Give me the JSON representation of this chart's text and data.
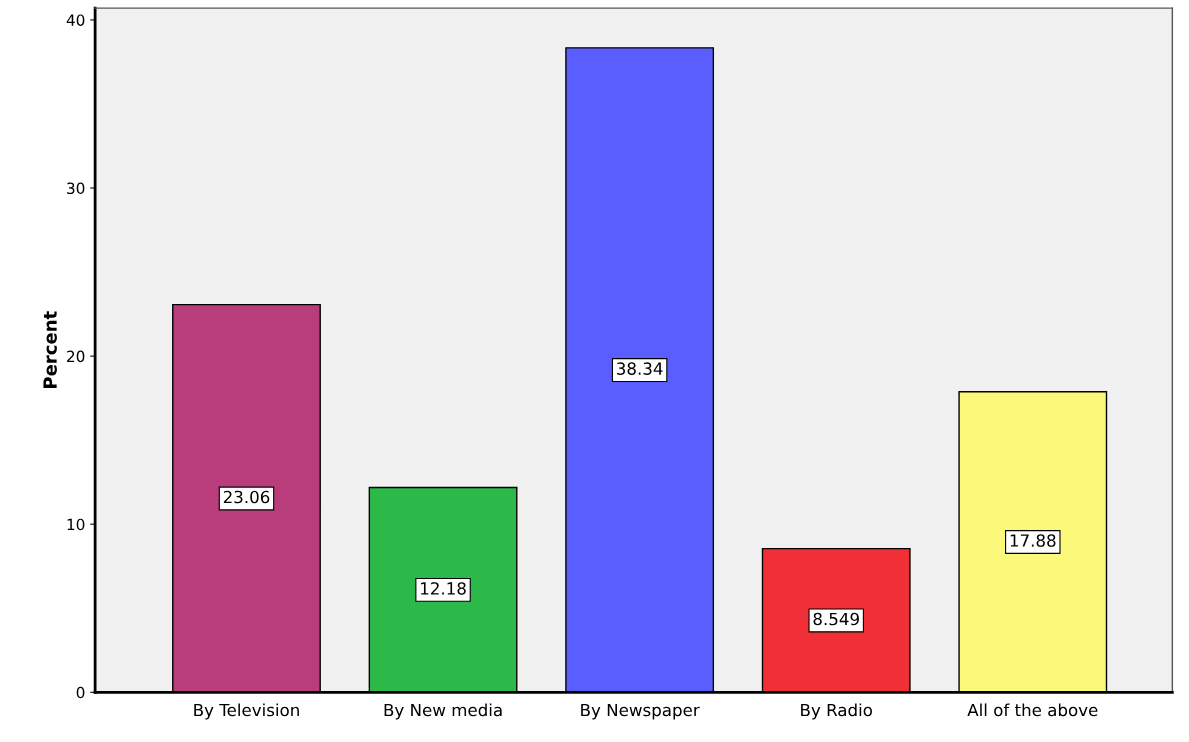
{
  "chart_data": {
    "type": "bar",
    "ylabel": "Percent",
    "categories": [
      "By Television",
      "By New media",
      "By Newspaper",
      "By Radio",
      "All of the above"
    ],
    "values": [
      23.06,
      12.18,
      38.34,
      8.549,
      17.88
    ],
    "colors": [
      "#b83d7a",
      "#2db84a",
      "#5a5eff",
      "#f03036",
      "#fbf87a"
    ],
    "data_labels": true,
    "ylim": [
      0,
      40.7
    ],
    "yticks": [
      0,
      10,
      20,
      30,
      40
    ],
    "grid": false,
    "legend": false
  }
}
